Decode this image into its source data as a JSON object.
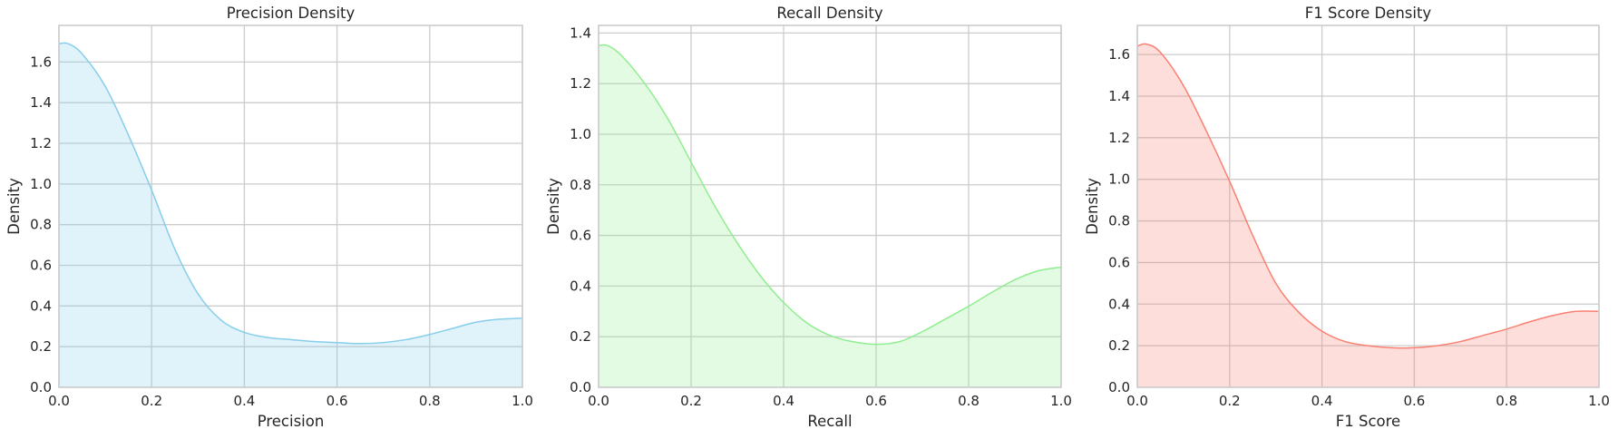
{
  "chart_data": [
    {
      "type": "area",
      "title": "Precision Density",
      "xlabel": "Precision",
      "ylabel": "Density",
      "color": "#87ceeb",
      "grid": true,
      "xlim": [
        0.0,
        1.0
      ],
      "ylim": [
        0.0,
        1.78
      ],
      "xticks": [
        "0.0",
        "0.2",
        "0.4",
        "0.6",
        "0.8",
        "1.0"
      ],
      "yticks": [
        "0.0",
        "0.2",
        "0.4",
        "0.6",
        "0.8",
        "1.0",
        "1.2",
        "1.4",
        "1.6"
      ],
      "x": [
        0.0,
        0.02,
        0.05,
        0.1,
        0.15,
        0.2,
        0.25,
        0.3,
        0.35,
        0.4,
        0.45,
        0.5,
        0.55,
        0.6,
        0.65,
        0.7,
        0.75,
        0.8,
        0.85,
        0.9,
        0.95,
        1.0
      ],
      "y": [
        1.69,
        1.69,
        1.64,
        1.48,
        1.24,
        0.97,
        0.68,
        0.46,
        0.33,
        0.27,
        0.245,
        0.235,
        0.225,
        0.22,
        0.215,
        0.22,
        0.235,
        0.26,
        0.29,
        0.32,
        0.335,
        0.34
      ]
    },
    {
      "type": "area",
      "title": "Recall Density",
      "xlabel": "Recall",
      "ylabel": "Density",
      "color": "#90ee90",
      "grid": true,
      "xlim": [
        0.0,
        1.0
      ],
      "ylim": [
        0.0,
        1.43
      ],
      "xticks": [
        "0.0",
        "0.2",
        "0.4",
        "0.6",
        "0.8",
        "1.0"
      ],
      "yticks": [
        "0.0",
        "0.2",
        "0.4",
        "0.6",
        "0.8",
        "1.0",
        "1.2",
        "1.4"
      ],
      "x": [
        0.0,
        0.02,
        0.05,
        0.1,
        0.15,
        0.2,
        0.25,
        0.3,
        0.35,
        0.4,
        0.45,
        0.5,
        0.55,
        0.6,
        0.65,
        0.7,
        0.75,
        0.8,
        0.85,
        0.9,
        0.95,
        1.0
      ],
      "y": [
        1.35,
        1.35,
        1.31,
        1.2,
        1.06,
        0.89,
        0.72,
        0.57,
        0.44,
        0.335,
        0.255,
        0.205,
        0.18,
        0.17,
        0.18,
        0.22,
        0.27,
        0.32,
        0.375,
        0.425,
        0.46,
        0.475
      ]
    },
    {
      "type": "area",
      "title": "F1 Score Density",
      "xlabel": "F1 Score",
      "ylabel": "Density",
      "color": "#fa8072",
      "grid": true,
      "xlim": [
        0.0,
        1.0
      ],
      "ylim": [
        0.0,
        1.74
      ],
      "xticks": [
        "0.0",
        "0.2",
        "0.4",
        "0.6",
        "0.8",
        "1.0"
      ],
      "yticks": [
        "0.0",
        "0.2",
        "0.4",
        "0.6",
        "0.8",
        "1.0",
        "1.2",
        "1.4",
        "1.6"
      ],
      "x": [
        0.0,
        0.02,
        0.05,
        0.1,
        0.15,
        0.2,
        0.25,
        0.3,
        0.35,
        0.4,
        0.45,
        0.5,
        0.55,
        0.6,
        0.65,
        0.7,
        0.75,
        0.8,
        0.85,
        0.9,
        0.95,
        1.0
      ],
      "y": [
        1.64,
        1.65,
        1.61,
        1.45,
        1.23,
        0.99,
        0.73,
        0.5,
        0.36,
        0.27,
        0.22,
        0.2,
        0.19,
        0.19,
        0.2,
        0.22,
        0.25,
        0.28,
        0.315,
        0.345,
        0.365,
        0.365
      ]
    }
  ]
}
